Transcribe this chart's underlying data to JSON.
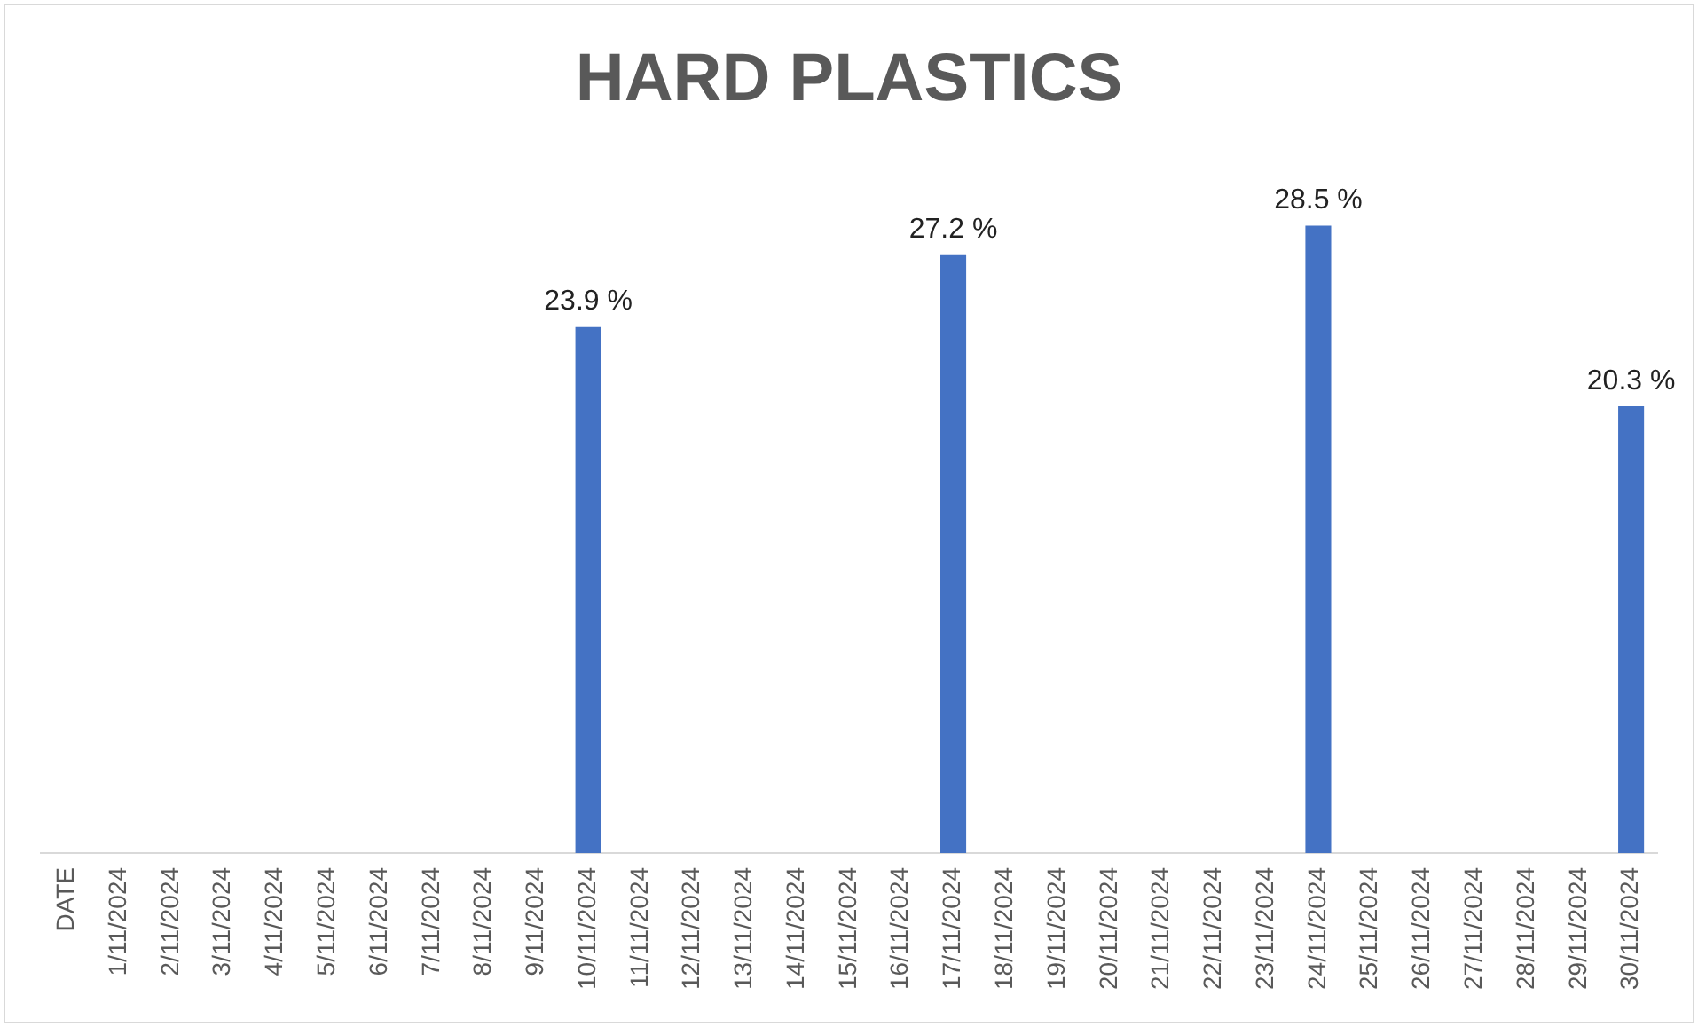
{
  "chart_data": {
    "type": "bar",
    "title": "HARD PLASTICS",
    "categories": [
      "DATE",
      "1/11/2024",
      "2/11/2024",
      "3/11/2024",
      "4/11/2024",
      "5/11/2024",
      "6/11/2024",
      "7/11/2024",
      "8/11/2024",
      "9/11/2024",
      "10/11/2024",
      "11/11/2024",
      "12/11/2024",
      "13/11/2024",
      "14/11/2024",
      "15/11/2024",
      "16/11/2024",
      "17/11/2024",
      "18/11/2024",
      "19/11/2024",
      "20/11/2024",
      "21/11/2024",
      "22/11/2024",
      "23/11/2024",
      "24/11/2024",
      "25/11/2024",
      "26/11/2024",
      "27/11/2024",
      "28/11/2024",
      "29/11/2024",
      "30/11/2024"
    ],
    "values": [
      null,
      null,
      null,
      null,
      null,
      null,
      null,
      null,
      null,
      null,
      23.9,
      null,
      null,
      null,
      null,
      null,
      null,
      27.2,
      null,
      null,
      null,
      null,
      null,
      null,
      28.5,
      null,
      null,
      null,
      null,
      null,
      20.3
    ],
    "value_labels": [
      null,
      null,
      null,
      null,
      null,
      null,
      null,
      null,
      null,
      null,
      "23.9 %",
      null,
      null,
      null,
      null,
      null,
      null,
      "27.2 %",
      null,
      null,
      null,
      null,
      null,
      null,
      "28.5 %",
      null,
      null,
      null,
      null,
      null,
      "20.3 %"
    ],
    "color": "#4472c4",
    "grid": false,
    "legend": false
  }
}
